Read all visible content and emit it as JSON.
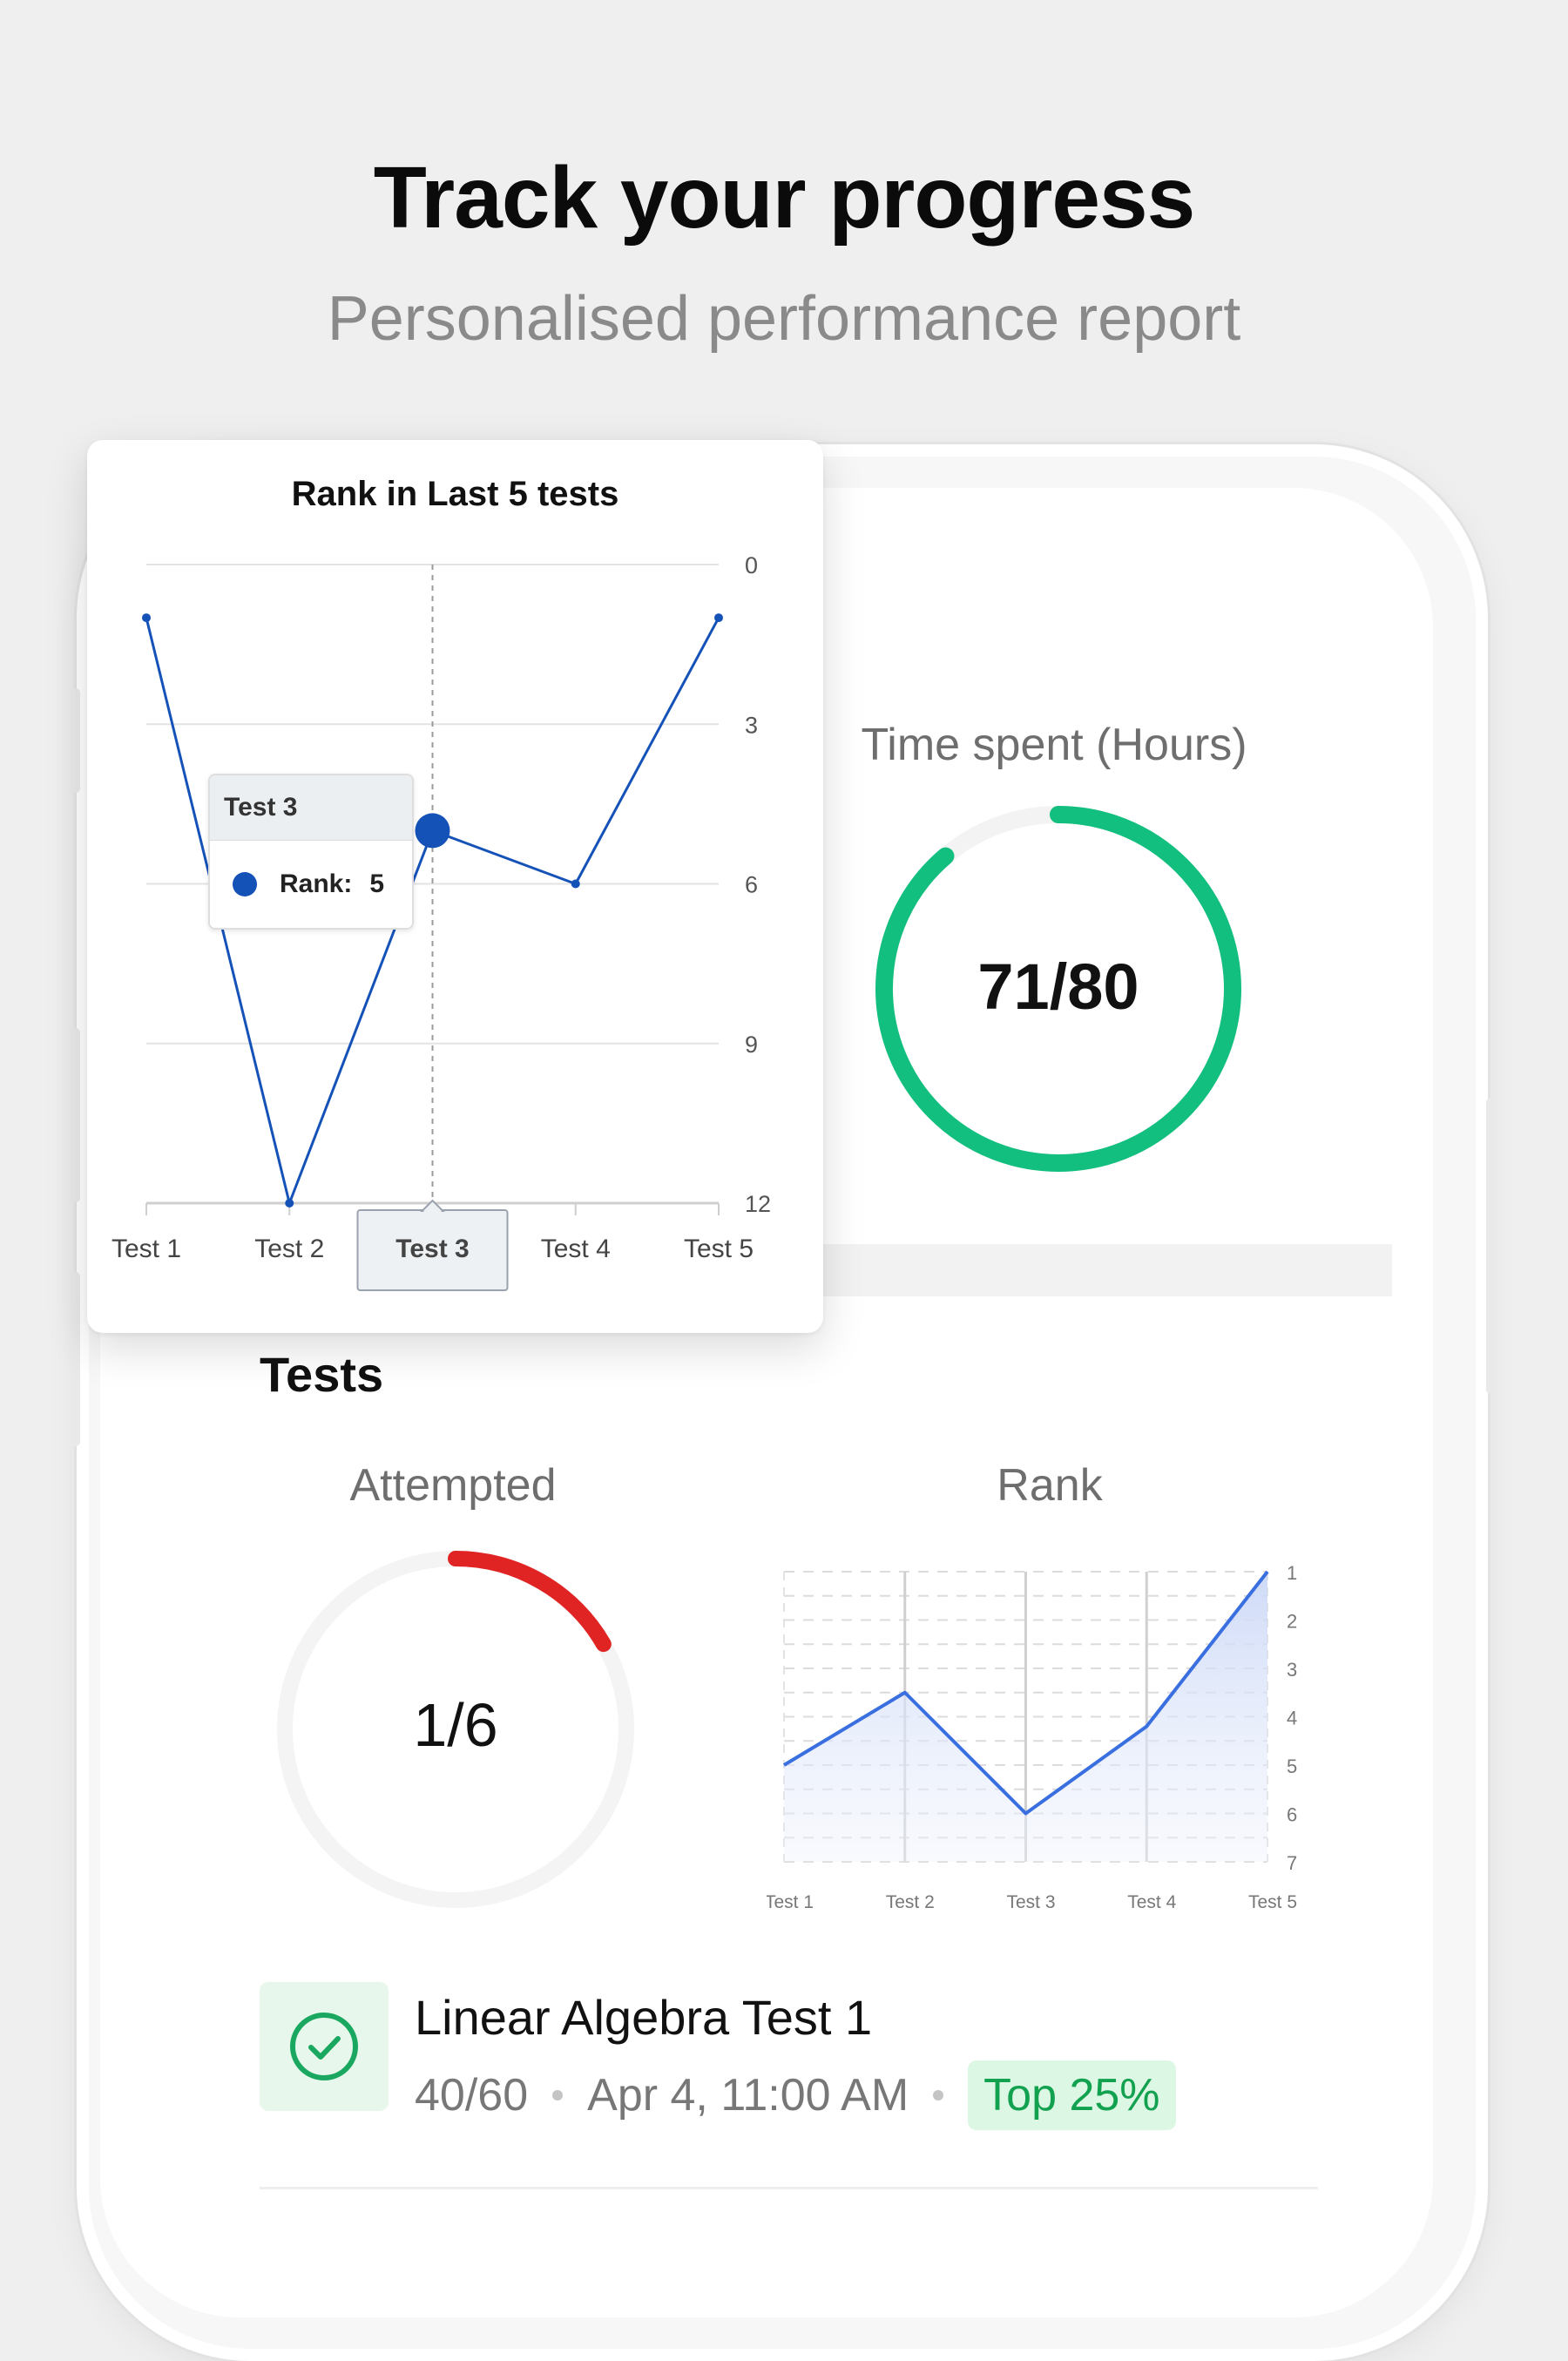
{
  "header": {
    "title": "Track your progress",
    "subtitle": "Personalised performance report"
  },
  "time_spent": {
    "title": "Time spent (Hours)",
    "value": "71/80",
    "progress": 0.8875,
    "color": "#13bf7f"
  },
  "tests_section": {
    "title": "Tests",
    "attempted": {
      "title": "Attempted",
      "value": "1/6",
      "progress": 0.1667,
      "color": "#e02424"
    },
    "rank": {
      "title": "Rank"
    }
  },
  "test_item": {
    "name": "Linear Algebra Test 1",
    "score": "40/60",
    "datetime": "Apr 4, 11:00 AM",
    "badge": "Top 25%",
    "icon": "check-circle-icon"
  },
  "rank_card": {
    "title": "Rank in Last 5 tests",
    "tooltip": {
      "title": "Test 3",
      "label": "Rank:",
      "value": "5"
    }
  },
  "chart_data": [
    {
      "type": "line",
      "title": "Rank in Last 5 tests",
      "categories": [
        "Test 1",
        "Test 2",
        "Test 3",
        "Test 4",
        "Test 5"
      ],
      "series": [
        {
          "values": [
            1,
            12,
            5,
            6,
            1
          ],
          "color": "#1552b8"
        }
      ],
      "ylim": [
        0,
        12
      ],
      "yticks": [
        0,
        3,
        6,
        9,
        12
      ],
      "y_inverted": true,
      "grid": true,
      "highlighted": "Test 3"
    },
    {
      "type": "area",
      "title": "Rank",
      "categories": [
        "Test 1",
        "Test 2",
        "Test 3",
        "Test 4",
        "Test 5"
      ],
      "series": [
        {
          "values": [
            5,
            3.5,
            6,
            4.2,
            1
          ],
          "color": "#3a6fe0"
        }
      ],
      "ylim": [
        1,
        7
      ],
      "yticks": [
        1,
        2,
        3,
        4,
        5,
        6,
        7
      ],
      "y_inverted": true,
      "grid": true
    }
  ]
}
